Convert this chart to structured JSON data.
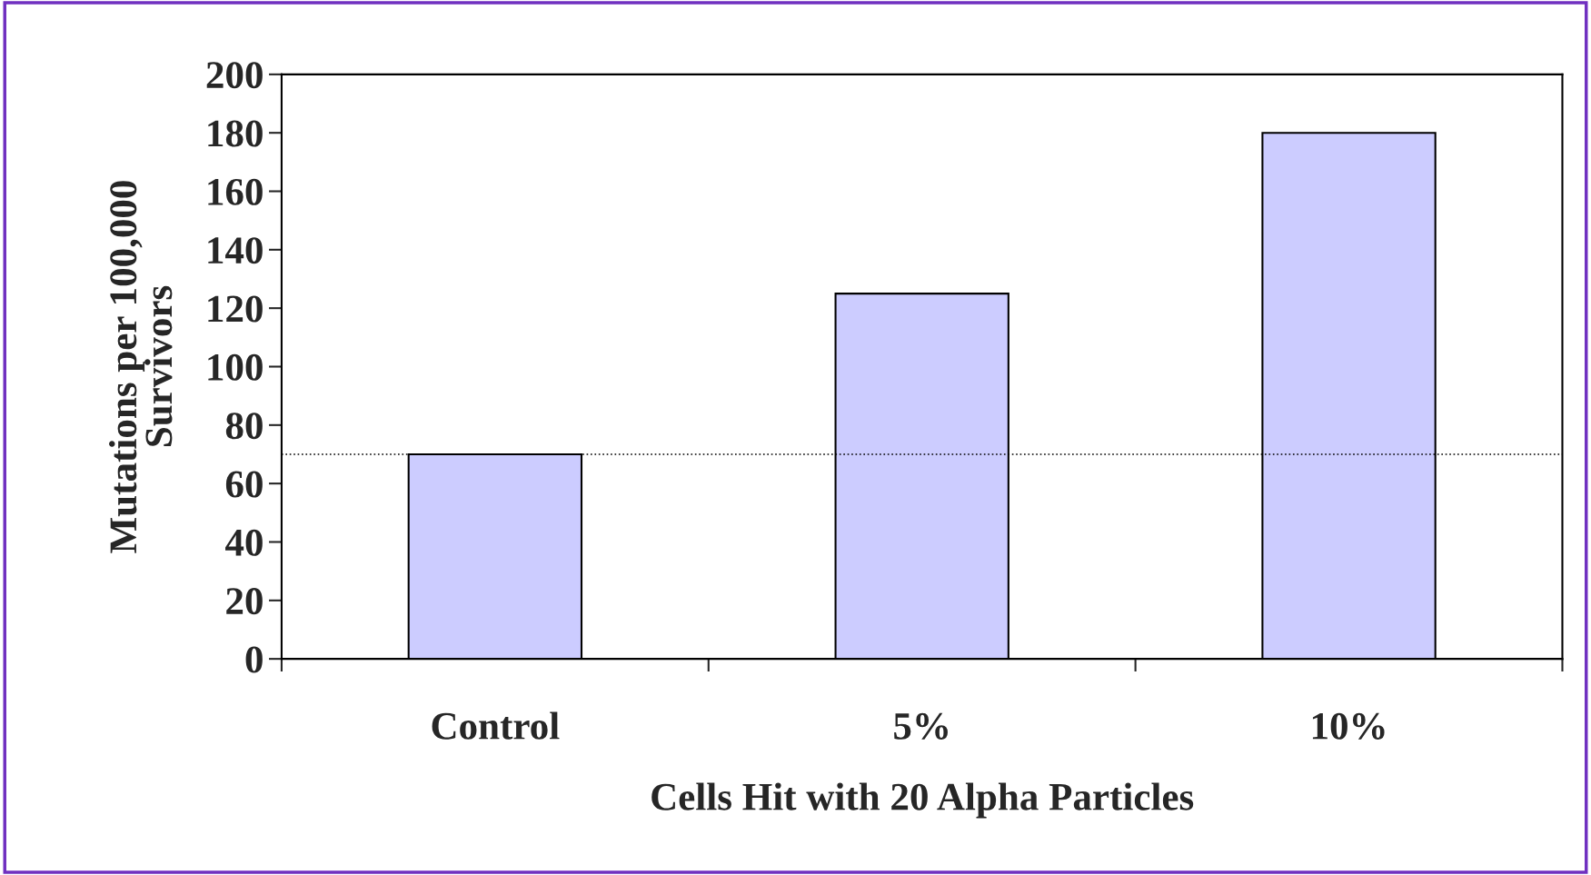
{
  "chart_data": {
    "type": "bar",
    "categories": [
      "Control",
      "5%",
      "10%"
    ],
    "values": [
      70,
      125,
      180
    ],
    "color": "#ccccff",
    "xlabel": "Cells Hit with 20 Alpha Particles",
    "ylabel": "Mutations per 100,000\nSurvivors",
    "ylim": [
      0,
      200
    ],
    "yticks": [
      0,
      20,
      40,
      60,
      80,
      100,
      120,
      140,
      160,
      180,
      200
    ],
    "ref_lines": [
      {
        "axis": "y",
        "value": 70,
        "label": null,
        "color": "#000000",
        "line_style": "dotted"
      }
    ],
    "grid": false,
    "legend": false
  }
}
